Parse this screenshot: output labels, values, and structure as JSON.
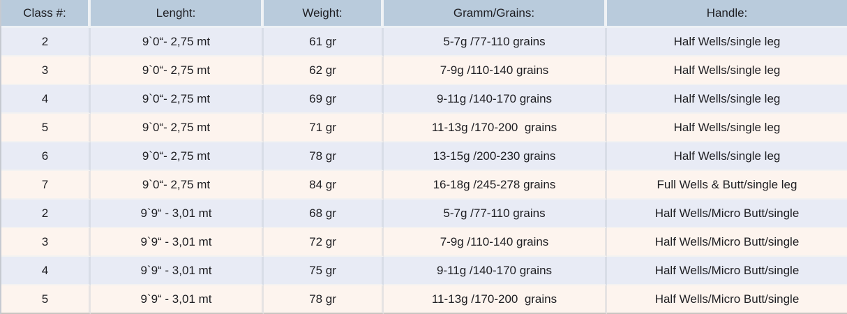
{
  "chart_data": {
    "type": "table",
    "columns": [
      "Class #:",
      "Lenght:",
      "Weight:",
      "Gramm/Grains:",
      "Handle:"
    ],
    "rows": [
      [
        "2",
        "9`0“- 2,75 mt",
        "61 gr",
        "5-7g /77-110 grains",
        "Half Wells/single leg"
      ],
      [
        "3",
        "9`0“- 2,75 mt",
        "62 gr",
        "7-9g /110-140 grains",
        "Half Wells/single leg"
      ],
      [
        "4",
        "9`0“- 2,75 mt",
        "69 gr",
        "9-11g /140-170 grains",
        "Half Wells/single leg"
      ],
      [
        "5",
        "9`0“- 2,75 mt",
        "71 gr",
        "11-13g /170-200  grains",
        "Half Wells/single leg"
      ],
      [
        "6",
        "9`0“- 2,75 mt",
        "78 gr",
        "13-15g /200-230 grains",
        "Half Wells/single leg"
      ],
      [
        "7",
        "9`0“- 2,75 mt",
        "84 gr",
        "16-18g /245-278 grains",
        "Full Wells & Butt/single leg"
      ],
      [
        "2",
        "9`9“ - 3,01 mt",
        "68 gr",
        "5-7g /77-110 grains",
        "Half Wells/Micro Butt/single"
      ],
      [
        "3",
        "9`9“ - 3,01 mt",
        "72 gr",
        "7-9g /110-140 grains",
        "Half Wells/Micro Butt/single"
      ],
      [
        "4",
        "9`9“ - 3,01 mt",
        "75 gr",
        "9-11g /140-170 grains",
        "Half Wells/Micro Butt/single"
      ],
      [
        "5",
        "9`9“ - 3,01 mt",
        "78 gr",
        "11-13g /170-200  grains",
        "Half Wells/Micro Butt/single"
      ]
    ],
    "layout": {
      "header_position": "top",
      "alternating_rows": true
    },
    "colors": {
      "header_bg": "#b9cbdc",
      "row_blue": "#e8ebf5",
      "row_cream": "#fdf4ee",
      "text": "#1e1e22"
    }
  }
}
